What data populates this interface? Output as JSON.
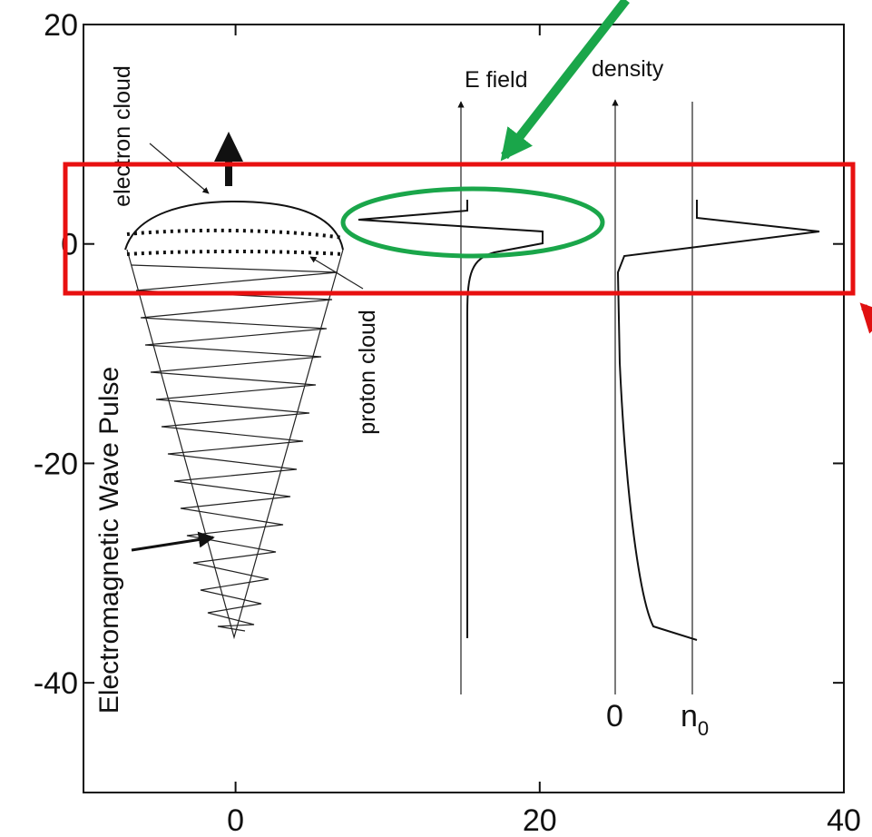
{
  "axes": {
    "xlim": [
      -10,
      40
    ],
    "ylim": [
      -50,
      20
    ],
    "xticks": [
      0,
      20,
      40
    ],
    "yticks": [
      20,
      0,
      -20,
      -40
    ]
  },
  "labels": {
    "electron_cloud": "electron cloud",
    "proton_cloud": "proton cloud",
    "em_pulse": "Electromagnetic Wave Pulse",
    "e_field": "E field",
    "density": "density",
    "zero": "0",
    "n_0": {
      "letter": "n",
      "subscript": "0"
    }
  }
}
